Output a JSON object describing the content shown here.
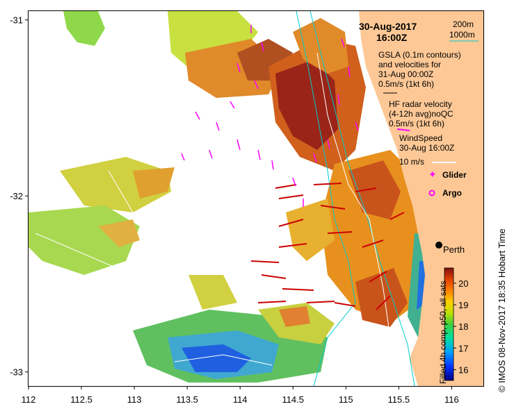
{
  "map": {
    "date_title": "30-Aug-2017",
    "time_title": "16:00Z",
    "land_color": "#fdc896",
    "ocean_fill_color": "#ffffff"
  },
  "bathymetry_legend": {
    "contour_200m": "200m",
    "contour_1000m": "1000m",
    "contour_color": "#00cccc"
  },
  "legend": {
    "gsla_line1": "GSLA (0.1m contours)",
    "gsla_line2": "and velocities for",
    "gsla_line3": "31-Aug 00:00Z",
    "gsla_scale": "0.5m/s (1kt 6h)",
    "hf_line1": "HF radar velocity",
    "hf_line2": "(4-12h avg)noQC",
    "hf_scale": "0.5m/s (1kt 6h)",
    "hf_color": "#ff00ff",
    "wind_line1": "WindSpeed",
    "wind_line2": "30-Aug 16:00Z",
    "wind_scale": "10 m/s",
    "glider_label": "Glider",
    "argo_label": "Argo"
  },
  "city": {
    "name": "Perth"
  },
  "axes": {
    "lon_ticks": [
      "112",
      "112.5",
      "113",
      "113.5",
      "114",
      "114.5",
      "115",
      "115.5",
      "116"
    ],
    "lat_ticks": [
      "-31",
      "-32",
      "-33"
    ],
    "lon_range": [
      112,
      116.3
    ],
    "lat_range": [
      -30.95,
      -33.08
    ]
  },
  "colorbar": {
    "title": "Filled 4h comp, p50, all sats",
    "ticks": [
      "16",
      "17",
      "18",
      "19",
      "20"
    ],
    "range": [
      15.5,
      20.7
    ]
  },
  "credit": "© IMOS 08-Nov-2017 18:35 Hobart Time"
}
